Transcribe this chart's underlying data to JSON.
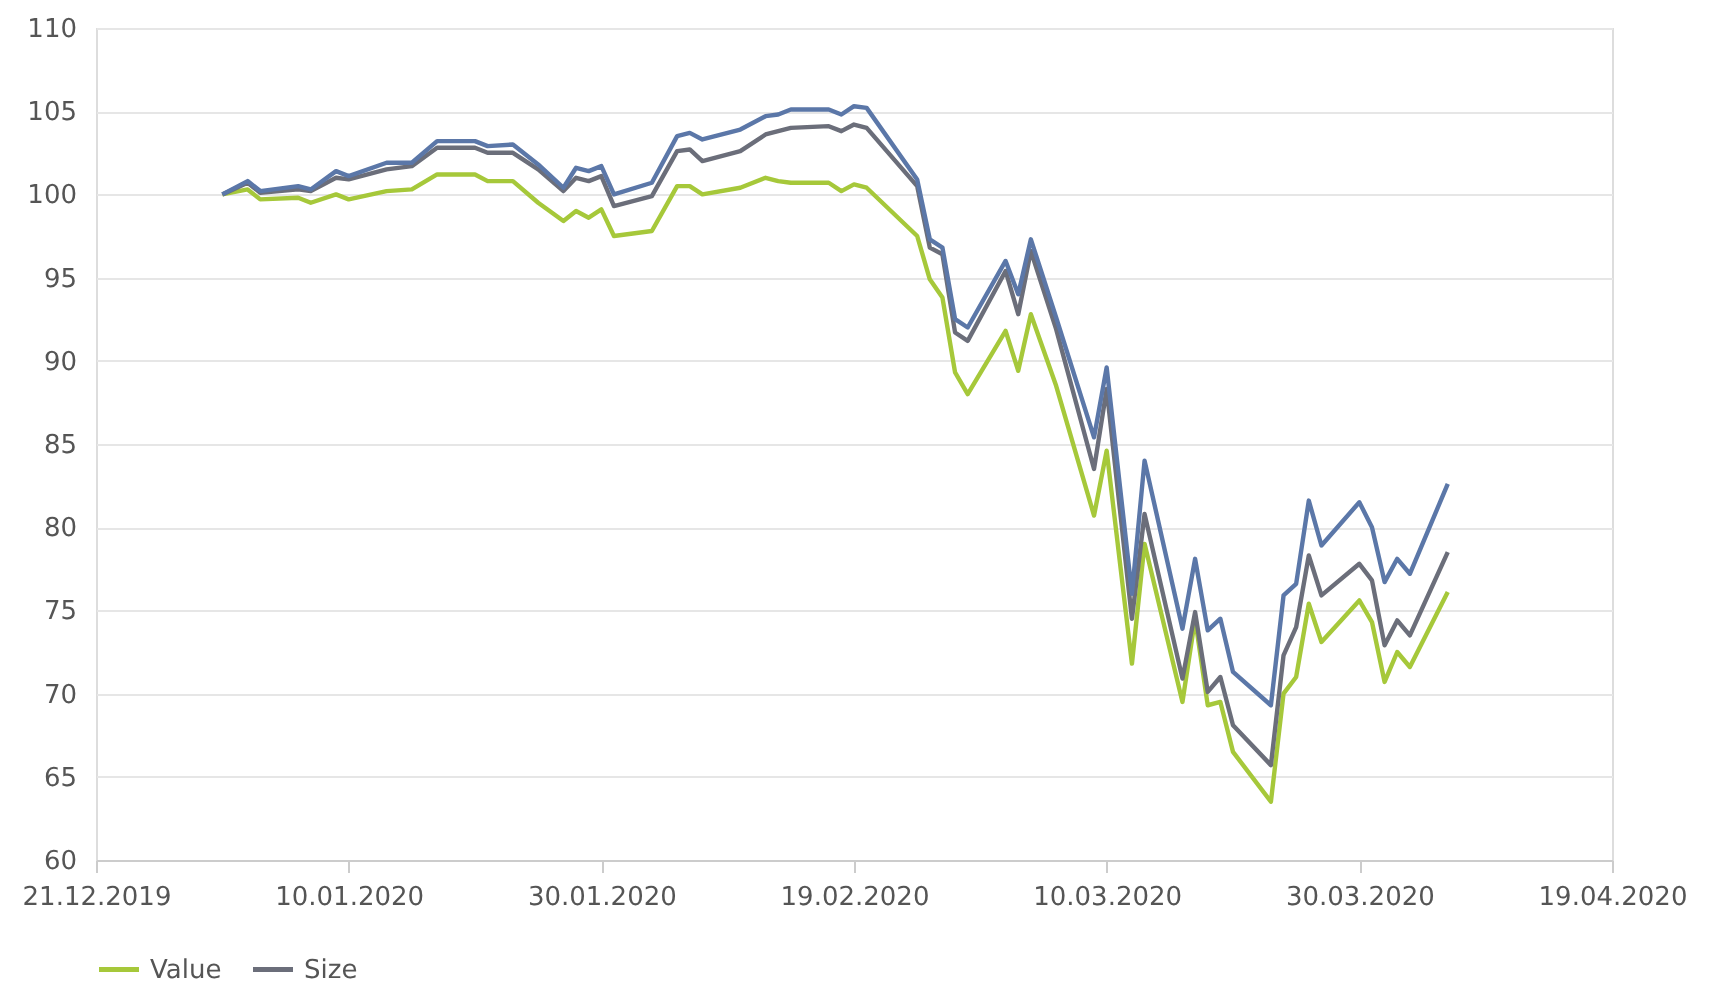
{
  "chart_data": {
    "type": "line",
    "x": [
      "2019-12-31",
      "2020-01-02",
      "2020-01-03",
      "2020-01-06",
      "2020-01-07",
      "2020-01-09",
      "2020-01-10",
      "2020-01-13",
      "2020-01-15",
      "2020-01-17",
      "2020-01-20",
      "2020-01-21",
      "2020-01-23",
      "2020-01-25",
      "2020-01-27",
      "2020-01-28",
      "2020-01-29",
      "2020-01-30",
      "2020-01-31",
      "2020-02-03",
      "2020-02-05",
      "2020-02-06",
      "2020-02-07",
      "2020-02-10",
      "2020-02-12",
      "2020-02-13",
      "2020-02-14",
      "2020-02-17",
      "2020-02-18",
      "2020-02-19",
      "2020-02-20",
      "2020-02-24",
      "2020-02-25",
      "2020-02-26",
      "2020-02-27",
      "2020-02-28",
      "2020-03-02",
      "2020-03-03",
      "2020-03-04",
      "2020-03-06",
      "2020-03-09",
      "2020-03-10",
      "2020-03-12",
      "2020-03-13",
      "2020-03-16",
      "2020-03-17",
      "2020-03-18",
      "2020-03-19",
      "2020-03-20",
      "2020-03-23",
      "2020-03-24",
      "2020-03-25",
      "2020-03-26",
      "2020-03-27",
      "2020-03-30",
      "2020-03-31",
      "2020-04-01",
      "2020-04-02",
      "2020-04-03",
      "2020-04-06"
    ],
    "series": [
      {
        "name": "Value",
        "color": "#a6c83a",
        "values": [
          100,
          100.3,
          99.7,
          99.8,
          99.5,
          100.0,
          99.7,
          100.2,
          100.3,
          101.2,
          101.2,
          100.8,
          100.8,
          99.5,
          98.4,
          99.0,
          98.6,
          99.1,
          97.5,
          97.8,
          100.5,
          100.5,
          100.0,
          100.4,
          101.0,
          100.8,
          100.7,
          100.7,
          100.2,
          100.6,
          100.4,
          97.5,
          94.9,
          93.8,
          89.3,
          88.0,
          91.8,
          89.4,
          92.8,
          88.5,
          80.7,
          84.6,
          71.8,
          79.0,
          69.5,
          74.5,
          69.3,
          69.5,
          66.5,
          63.5,
          70.0,
          71.0,
          75.4,
          73.1,
          75.6,
          74.3,
          70.7,
          72.5,
          71.6,
          76.1
        ]
      },
      {
        "name": "Size",
        "color": "#6b6e7a",
        "values": [
          100,
          100.7,
          100.1,
          100.3,
          100.2,
          101.0,
          100.9,
          101.5,
          101.7,
          102.8,
          102.8,
          102.5,
          102.5,
          101.5,
          100.2,
          101.0,
          100.8,
          101.1,
          99.3,
          99.9,
          102.6,
          102.7,
          102.0,
          102.6,
          103.6,
          103.8,
          104.0,
          104.1,
          103.8,
          104.2,
          104.0,
          100.5,
          96.8,
          96.4,
          91.7,
          91.2,
          95.4,
          92.8,
          96.6,
          91.9,
          83.5,
          88.3,
          74.5,
          80.8,
          70.9,
          74.9,
          70.1,
          71.0,
          68.1,
          65.7,
          72.3,
          74.0,
          78.3,
          75.9,
          77.8,
          76.8,
          72.9,
          74.4,
          73.5,
          78.5
        ]
      },
      {
        "color": "#5b77a8",
        "values": [
          100,
          100.8,
          100.2,
          100.5,
          100.3,
          101.4,
          101.1,
          101.9,
          101.9,
          103.2,
          103.2,
          102.9,
          103.0,
          101.8,
          100.4,
          101.6,
          101.4,
          101.7,
          100.0,
          100.7,
          103.5,
          103.7,
          103.3,
          103.9,
          104.7,
          104.8,
          105.1,
          105.1,
          104.8,
          105.3,
          105.2,
          100.9,
          97.3,
          96.8,
          92.5,
          92.0,
          96.0,
          94.0,
          97.3,
          92.6,
          85.4,
          89.6,
          76.0,
          84.0,
          73.9,
          78.1,
          73.8,
          74.5,
          71.3,
          69.3,
          75.9,
          76.6,
          81.6,
          78.9,
          81.5,
          80.0,
          76.7,
          78.1,
          77.2,
          82.6
        ]
      }
    ],
    "xlim": [
      "2019-12-21",
      "2020-04-19"
    ],
    "xticks": [
      {
        "value": "2019-12-21",
        "label": "21.12.2019"
      },
      {
        "value": "2020-01-10",
        "label": "10.01.2020"
      },
      {
        "value": "2020-01-30",
        "label": "30.01.2020"
      },
      {
        "value": "2020-02-19",
        "label": "19.02.2020"
      },
      {
        "value": "2020-03-10",
        "label": "10.03.2020"
      },
      {
        "value": "2020-03-30",
        "label": "30.03.2020"
      },
      {
        "value": "2020-04-19",
        "label": "19.04.2020"
      }
    ],
    "ylim": [
      60,
      110
    ],
    "yticks": [
      60,
      65,
      70,
      75,
      80,
      85,
      90,
      95,
      100,
      105,
      110
    ],
    "grid": "y",
    "legend": "bottom",
    "marker": "none",
    "line_style": "solid"
  }
}
